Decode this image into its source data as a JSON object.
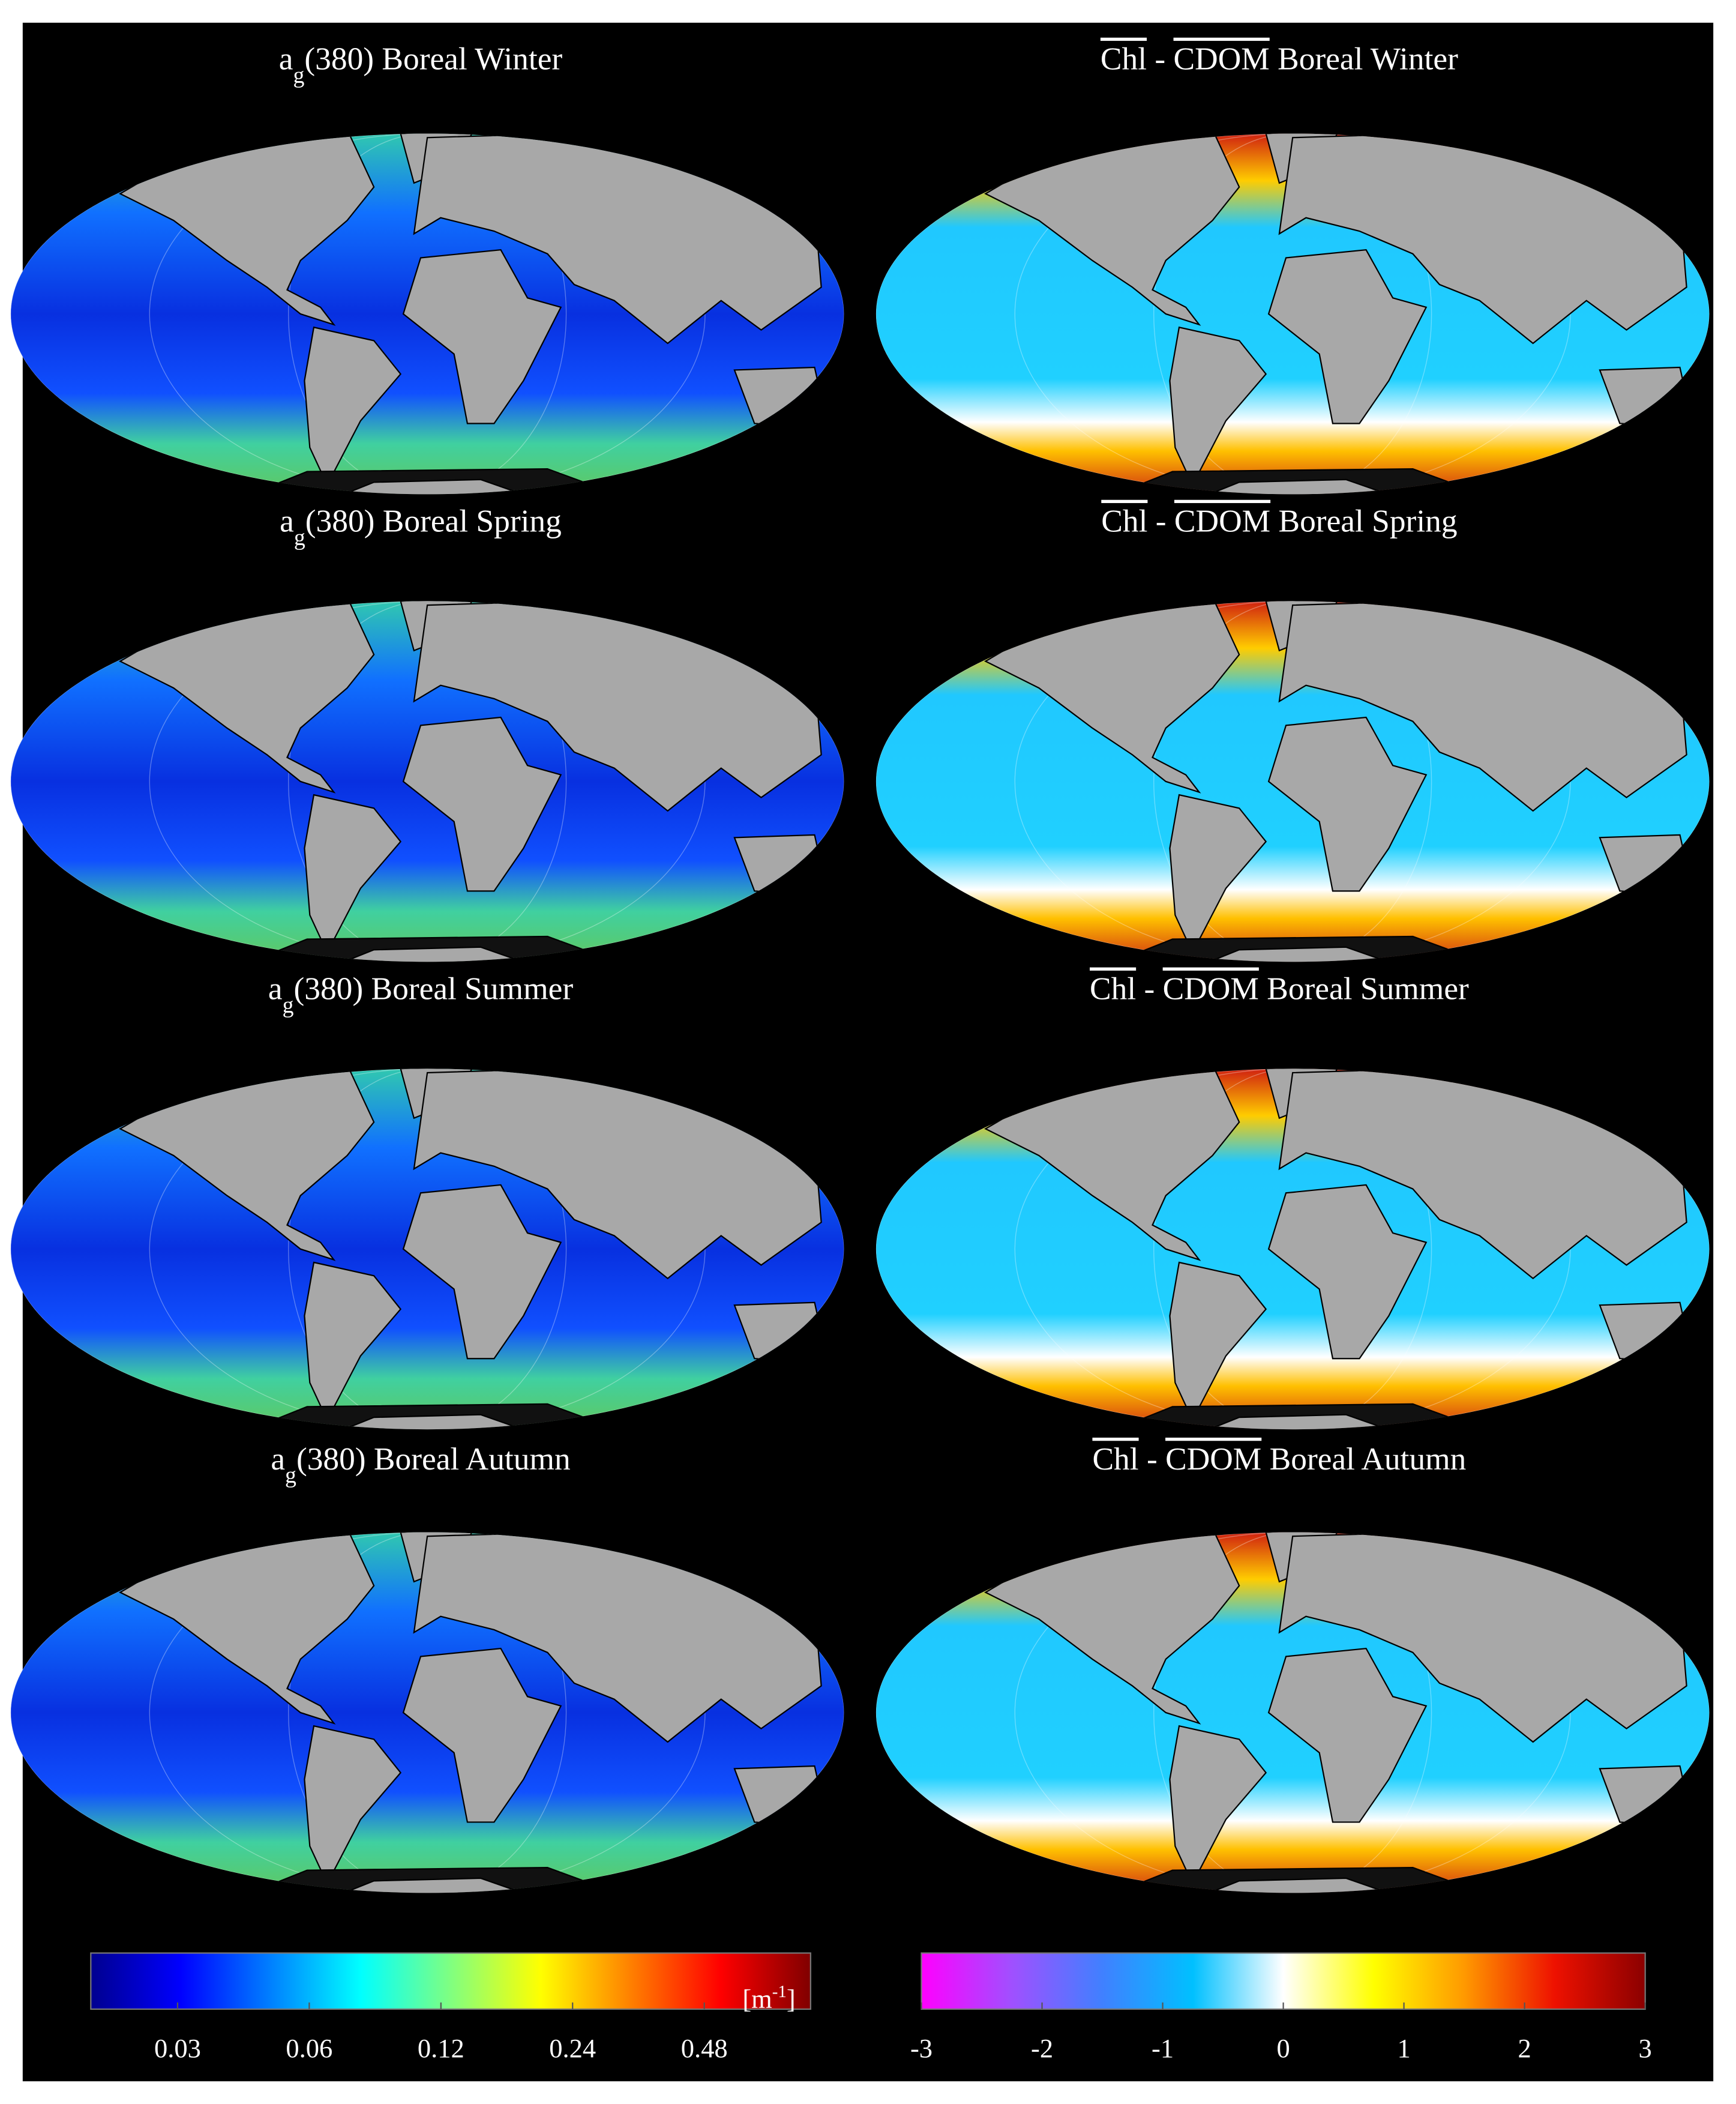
{
  "panels": [
    {
      "title": {
        "symbol": "a",
        "subscript": "g",
        "text": "(380) Boreal Winter"
      }
    },
    {
      "title": {
        "symbol": "a",
        "subscript": "g",
        "text": "(380) Boreal Spring"
      }
    },
    {
      "title": {
        "symbol": "a",
        "subscript": "g",
        "text": "(380) Boreal Summer"
      }
    },
    {
      "title": {
        "symbol": "a",
        "subscript": "g",
        "text": "(380) Boreal Autumn"
      }
    },
    {
      "title": {
        "term1": "Chl",
        "operator": "-",
        "term2": "CDOM",
        "text": "Boreal Winter"
      }
    },
    {
      "title": {
        "term1": "Chl",
        "operator": "-",
        "term2": "CDOM",
        "text": "Boreal Spring"
      }
    },
    {
      "title": {
        "term1": "Chl",
        "operator": "-",
        "term2": "CDOM",
        "text": "Boreal Summer"
      }
    },
    {
      "title": {
        "term1": "Chl",
        "operator": "-",
        "term2": "CDOM",
        "text": "Boreal Autumn"
      }
    }
  ],
  "colorbars": [
    {
      "lim": [
        0.019,
        0.84
      ],
      "log": true,
      "ticks": [
        0.03,
        0.06,
        0.12,
        0.24,
        0.48
      ],
      "unit": {
        "text": "[m",
        "superscript": "-1",
        "close": "]"
      },
      "colors": [
        "#00008f",
        "#0000ff",
        "#0080ff",
        "#00ffff",
        "#80ff80",
        "#ffff00",
        "#ff8000",
        "#ff0000",
        "#800000"
      ]
    },
    {
      "lim": [
        -3,
        3
      ],
      "log": false,
      "ticks": [
        -3,
        -2,
        -1,
        0,
        1,
        2,
        3
      ],
      "colors": [
        "#ff00ff",
        "#a050ff",
        "#4080ff",
        "#00c0ff",
        "#ffffff",
        "#ffff00",
        "#ff9900",
        "#ee1100",
        "#8b0000"
      ]
    }
  ]
}
